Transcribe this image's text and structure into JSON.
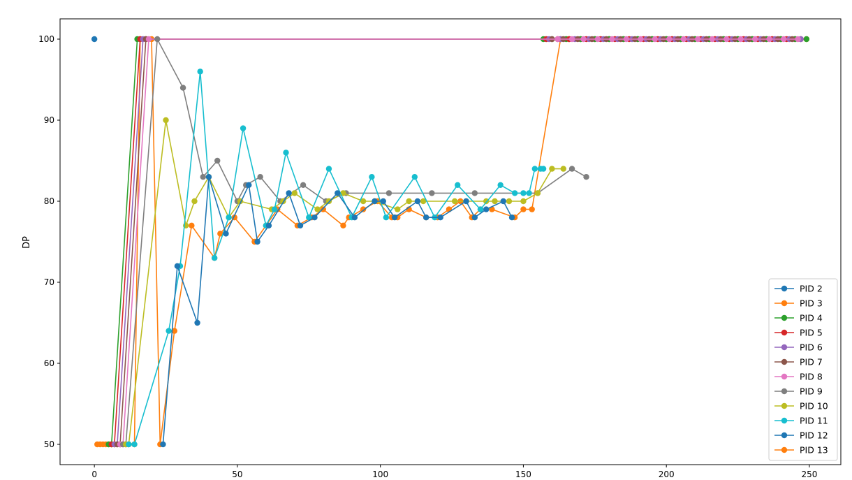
{
  "chart_data": {
    "type": "line",
    "title": "",
    "xlabel": "",
    "ylabel": "DP",
    "xlim": [
      -12,
      261
    ],
    "ylim": [
      47.5,
      102.5
    ],
    "xticks": [
      0,
      50,
      100,
      150,
      200,
      250
    ],
    "yticks": [
      50,
      60,
      70,
      80,
      90,
      100
    ],
    "grid": false,
    "legend_position": "bottom-right",
    "series": [
      {
        "name": "PID 2",
        "color": "#1f77b4",
        "x": [
          0
        ],
        "y": [
          100
        ]
      },
      {
        "name": "PID 3",
        "color": "#ff7f0e",
        "x": [
          1,
          2,
          3,
          4,
          5,
          6,
          7,
          8,
          9,
          10,
          11,
          12,
          14,
          16,
          18,
          20,
          23,
          28,
          34,
          42,
          44,
          49,
          56,
          60,
          64,
          71,
          76,
          80,
          87,
          89,
          94,
          99,
          104,
          106,
          110,
          116,
          120,
          124,
          128,
          132,
          135,
          139,
          147,
          150,
          153,
          163,
          166,
          170,
          175,
          180,
          185,
          190,
          195,
          200,
          205,
          210,
          215,
          220,
          225,
          230,
          235,
          240,
          245,
          249
        ],
        "y": [
          50,
          50,
          50,
          50,
          50,
          50,
          50,
          50,
          50,
          50,
          50,
          50,
          50,
          100,
          100,
          100,
          50,
          64,
          77,
          73,
          76,
          78,
          75,
          77,
          79,
          77,
          78,
          79,
          77,
          78,
          79,
          80,
          78,
          78,
          79,
          78,
          78,
          79,
          80,
          78,
          79,
          79,
          78,
          79,
          79,
          100,
          100,
          100,
          100,
          100,
          100,
          100,
          100,
          100,
          100,
          100,
          100,
          100,
          100,
          100,
          100,
          100,
          100,
          100
        ]
      },
      {
        "name": "PID 4",
        "color": "#2ca02c",
        "x": [
          5,
          6,
          15,
          157,
          160,
          165,
          170,
          175,
          180,
          185,
          190,
          195,
          200,
          205,
          210,
          215,
          220,
          225,
          230,
          235,
          240,
          245,
          249
        ],
        "y": [
          50,
          50,
          100,
          100,
          100,
          100,
          100,
          100,
          100,
          100,
          100,
          100,
          100,
          100,
          100,
          100,
          100,
          100,
          100,
          100,
          100,
          100,
          100
        ]
      },
      {
        "name": "PID 5",
        "color": "#d62728",
        "x": [
          6,
          7,
          16,
          158,
          162,
          166,
          172,
          177,
          182,
          187,
          192,
          197,
          202,
          207,
          212,
          217,
          222,
          227,
          232,
          237,
          242,
          247
        ],
        "y": [
          50,
          50,
          100,
          100,
          100,
          100,
          100,
          100,
          100,
          100,
          100,
          100,
          100,
          100,
          100,
          100,
          100,
          100,
          100,
          100,
          100,
          100
        ]
      },
      {
        "name": "PID 6",
        "color": "#9467bd",
        "x": [
          7,
          8,
          17,
          159,
          163,
          168,
          173,
          178,
          183,
          188,
          193,
          198,
          203,
          208,
          213,
          218,
          223,
          228,
          233,
          238,
          243,
          247
        ],
        "y": [
          50,
          50,
          100,
          100,
          100,
          100,
          100,
          100,
          100,
          100,
          100,
          100,
          100,
          100,
          100,
          100,
          100,
          100,
          100,
          100,
          100,
          100
        ]
      },
      {
        "name": "PID 7",
        "color": "#8c564b",
        "x": [
          8,
          9,
          18,
          160,
          164,
          169,
          174,
          179,
          184,
          189,
          194,
          199,
          204,
          209,
          214,
          219,
          224,
          229,
          234,
          239,
          244
        ],
        "y": [
          50,
          50,
          100,
          100,
          100,
          100,
          100,
          100,
          100,
          100,
          100,
          100,
          100,
          100,
          100,
          100,
          100,
          100,
          100,
          100,
          100
        ]
      },
      {
        "name": "PID 8",
        "color": "#e377c2",
        "x": [
          9,
          10,
          19,
          162,
          167,
          171,
          176,
          181,
          186,
          191,
          196,
          201,
          206,
          211,
          216,
          221,
          226,
          231,
          236,
          241,
          246
        ],
        "y": [
          50,
          50,
          100,
          100,
          100,
          100,
          100,
          100,
          100,
          100,
          100,
          100,
          100,
          100,
          100,
          100,
          100,
          100,
          100,
          100,
          100
        ]
      },
      {
        "name": "PID 9",
        "color": "#7f7f7f",
        "x": [
          10,
          11,
          22,
          31,
          38,
          43,
          50,
          53,
          58,
          65,
          73,
          81,
          88,
          103,
          118,
          133,
          155,
          167,
          172
        ],
        "y": [
          50,
          50,
          100,
          94,
          83,
          85,
          80,
          82,
          83,
          80,
          82,
          80,
          81,
          81,
          81,
          81,
          81,
          84,
          83
        ],
        "_note": ""
      },
      {
        "name": "PID 10",
        "color": "#bcbd22",
        "x": [
          11,
          12,
          25,
          32,
          35,
          40,
          47,
          51,
          62,
          66,
          70,
          78,
          82,
          87,
          94,
          98,
          106,
          110,
          115,
          126,
          130,
          137,
          140,
          145,
          150,
          155,
          160,
          164
        ],
        "y": [
          50,
          50,
          90,
          77,
          80,
          83,
          78,
          80,
          79,
          80,
          81,
          79,
          80,
          81,
          80,
          80,
          79,
          80,
          80,
          80,
          80,
          80,
          80,
          80,
          80,
          81,
          84,
          84
        ]
      },
      {
        "name": "PID 11",
        "color": "#17becf",
        "x": [
          12,
          14,
          26,
          30,
          37,
          42,
          47,
          52,
          60,
          63,
          67,
          75,
          82,
          90,
          97,
          102,
          112,
          119,
          127,
          135,
          142,
          147,
          150,
          152,
          154,
          156,
          157
        ],
        "y": [
          50,
          50,
          64,
          72,
          96,
          73,
          78,
          89,
          77,
          79,
          86,
          78,
          84,
          78,
          83,
          78,
          83,
          78,
          82,
          79,
          82,
          81,
          81,
          81,
          84,
          84,
          84
        ]
      },
      {
        "name": "PID 12",
        "color": "#1f77b4",
        "x": [
          24,
          29,
          36,
          40,
          46,
          54,
          57,
          61,
          68,
          72,
          77,
          85,
          91,
          98,
          101,
          105,
          113,
          116,
          121,
          130,
          133,
          137,
          143,
          146
        ],
        "y": [
          50,
          72,
          65,
          83,
          76,
          82,
          75,
          77,
          81,
          77,
          78,
          81,
          78,
          80,
          80,
          78,
          80,
          78,
          78,
          80,
          78,
          79,
          80,
          78
        ]
      },
      {
        "name": "PID 13",
        "color": "#ff7f0e",
        "x": [],
        "y": []
      }
    ]
  }
}
